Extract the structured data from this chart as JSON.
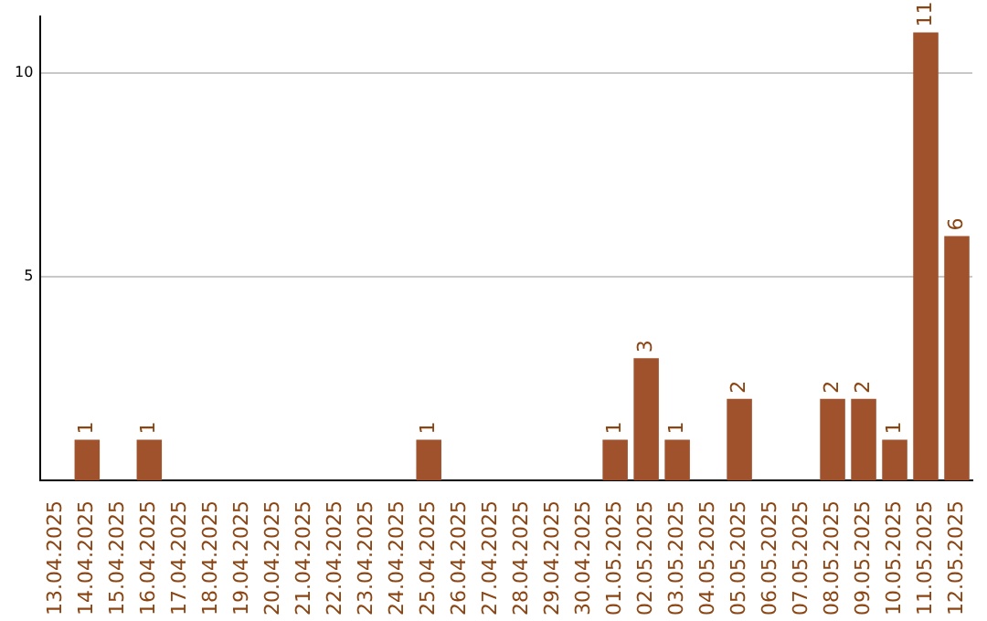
{
  "chart_data": {
    "type": "bar",
    "categories": [
      "13.04.2025",
      "14.04.2025",
      "15.04.2025",
      "16.04.2025",
      "17.04.2025",
      "18.04.2025",
      "19.04.2025",
      "20.04.2025",
      "21.04.2025",
      "22.04.2025",
      "23.04.2025",
      "24.04.2025",
      "25.04.2025",
      "26.04.2025",
      "27.04.2025",
      "28.04.2025",
      "29.04.2025",
      "30.04.2025",
      "01.05.2025",
      "02.05.2025",
      "03.05.2025",
      "04.05.2025",
      "05.05.2025",
      "06.05.2025",
      "07.05.2025",
      "08.05.2025",
      "09.05.2025",
      "10.05.2025",
      "11.05.2025",
      "12.05.2025"
    ],
    "values": [
      0,
      1,
      0,
      1,
      0,
      0,
      0,
      0,
      0,
      0,
      0,
      0,
      1,
      0,
      0,
      0,
      0,
      0,
      1,
      3,
      1,
      0,
      2,
      0,
      0,
      2,
      2,
      1,
      11,
      6
    ],
    "value_labels": [
      null,
      "1",
      null,
      "1",
      null,
      null,
      null,
      null,
      null,
      null,
      null,
      null,
      "1",
      null,
      null,
      null,
      null,
      null,
      "1",
      "3",
      "1",
      null,
      "2",
      null,
      null,
      "2",
      "2",
      "1",
      "11",
      "6"
    ],
    "color": "#a0522d",
    "ylim": [
      0,
      11.4
    ],
    "yticks": [
      5,
      10
    ],
    "grid": "y",
    "legend": false
  }
}
